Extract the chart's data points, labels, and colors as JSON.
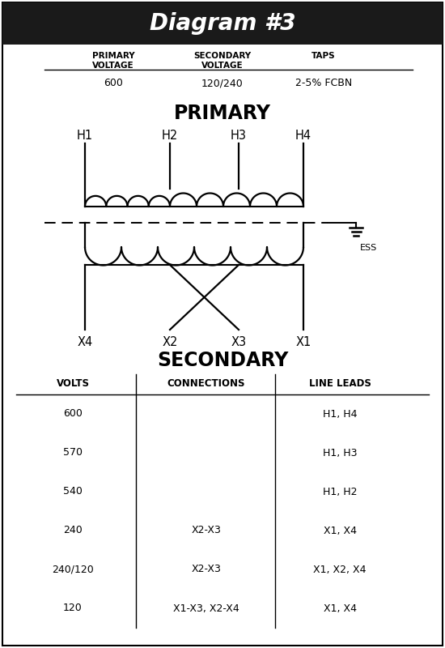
{
  "title": "Diagram #3",
  "title_bg": "#1a1a1a",
  "title_color": "#ffffff",
  "primary_voltage": "600",
  "secondary_voltage": "120/240",
  "taps": "2-5% FCBN",
  "h_labels": [
    "H1",
    "H2",
    "H3",
    "H4"
  ],
  "x_labels": [
    "X4",
    "X2",
    "X3",
    "X1"
  ],
  "primary_label": "PRIMARY",
  "secondary_label": "SECONDARY",
  "ess_label": "ESS",
  "table_headers": [
    "VOLTS",
    "CONNECTIONS",
    "LINE LEADS"
  ],
  "table_rows": [
    [
      "600",
      "",
      "H1, H4"
    ],
    [
      "570",
      "",
      "H1, H3"
    ],
    [
      "540",
      "",
      "H1, H2"
    ],
    [
      "240",
      "X2-X3",
      "X1, X4"
    ],
    [
      "240/120",
      "X2-X3",
      "X1, X2, X4"
    ],
    [
      "120",
      "X1-X3, X2-X4",
      "X1, X4"
    ]
  ],
  "fig_w": 5.5,
  "fig_h": 8.0,
  "dpi": 100
}
